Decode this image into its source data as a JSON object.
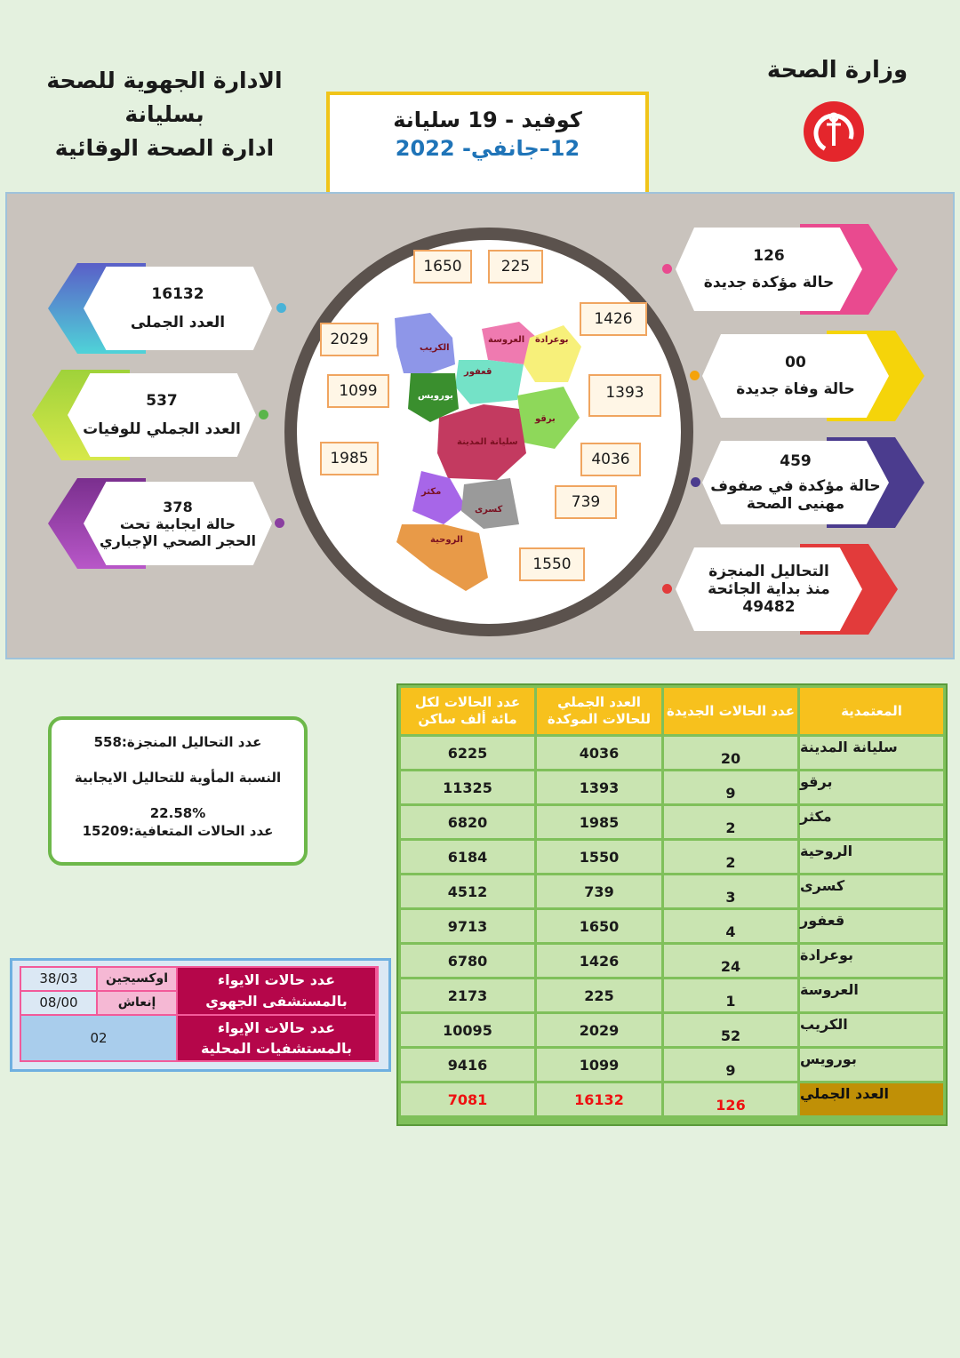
{
  "header": {
    "left_lines": [
      "الادارة الجهوية للصحة",
      "بسليانة",
      "ادارة الصحة الوقائية"
    ],
    "ministry": "وزارة الصحة",
    "title": "كوفيد - 19  سليانة",
    "date": "12–جانفي- 2022"
  },
  "colors": {
    "header_box": "#f0c419",
    "table_header": "#f7c11d",
    "map_ring": "#5b524d"
  },
  "cards_right": [
    {
      "value": "126",
      "label": "حالة مؤكدة جديدة"
    },
    {
      "value": "00",
      "label": "حالة وفاة جديدة"
    },
    {
      "value": "459",
      "label": "حالة مؤكدة في صفوف",
      "label2": "مهنيى الصحة"
    },
    {
      "label": "التحاليل المنجزة",
      "label2": "منذ بداية الجائحة",
      "value": "49482"
    }
  ],
  "cards_left": [
    {
      "value": "16132",
      "label": "العدد الجملى"
    },
    {
      "value": "537",
      "label": "العدد الجملي للوفيات"
    },
    {
      "value": "378",
      "label": "حالة ايجابية تحت",
      "label2": "الحجر الصحي الإجباري"
    }
  ],
  "map": {
    "boxes": [
      "1650",
      "225",
      "1426",
      "2029",
      "1099",
      "1393",
      "1985",
      "4036",
      "739",
      "1550"
    ],
    "labels": {
      "bourouis": "بورويس",
      "kesra": "كسرى",
      "rouhia": "الروحية",
      "makthar": "مكثر",
      "siliana": "سليانة المدينة",
      "gaafour": "قعفور",
      "laaroussa": "العروسة",
      "bouarada": "بوعرادة",
      "bargou": "برقو",
      "krib": "الكريب"
    }
  },
  "stats": {
    "line1": "عدد التحاليل المنجزة:558",
    "line2": "النسبة المأوية للتحاليل الايجابية",
    "line3": "22.58%",
    "line4": "عدد الحالات المتعافية:15209"
  },
  "hospital": {
    "regional_label": "عدد حالات الايواء بالمستشفى الجهوي",
    "oxygen_label": "اوكسيجين",
    "oxygen_value": "38/03",
    "icu_label": "إنعاش",
    "icu_value": "08/00",
    "local_label": "عدد حالات الإيواء بالمستشفيات المحلية",
    "local_value": "02"
  },
  "table": {
    "headers": [
      "المعتمدية",
      "عدد الحالات الجديدة",
      "العدد الجملي للحالات الموكدة",
      "عدد الحالات لكل مائة ألف ساكن"
    ],
    "rows": [
      {
        "name": "سليانة المدينة",
        "new": "20",
        "total": "4036",
        "per100k": "6225"
      },
      {
        "name": "برقو",
        "new": "9",
        "total": "1393",
        "per100k": "11325"
      },
      {
        "name": "مكثر",
        "new": "2",
        "total": "1985",
        "per100k": "6820"
      },
      {
        "name": "الروحية",
        "new": "2",
        "total": "1550",
        "per100k": "6184"
      },
      {
        "name": "كسرى",
        "new": "3",
        "total": "739",
        "per100k": "4512"
      },
      {
        "name": "قعفور",
        "new": "4",
        "total": "1650",
        "per100k": "9713"
      },
      {
        "name": "بوعرادة",
        "new": "24",
        "total": "1426",
        "per100k": "6780"
      },
      {
        "name": "العروسة",
        "new": "1",
        "total": "225",
        "per100k": "2173"
      },
      {
        "name": "الكريب",
        "new": "52",
        "total": "2029",
        "per100k": "10095"
      },
      {
        "name": "بورويس",
        "new": "9",
        "total": "1099",
        "per100k": "9416"
      }
    ],
    "total": {
      "name": "العدد الجملي",
      "new": "126",
      "total": "16132",
      "per100k": "7081"
    }
  }
}
